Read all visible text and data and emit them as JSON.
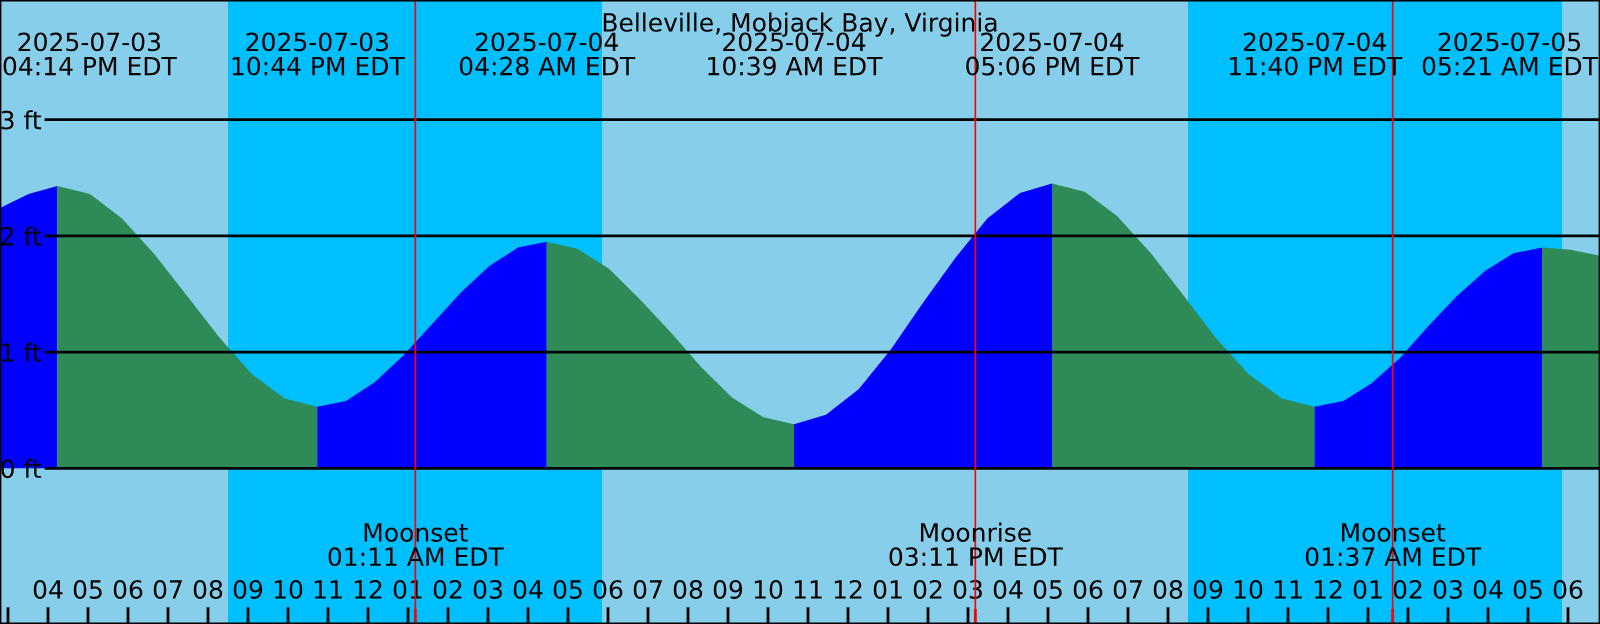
{
  "chart_data": {
    "type": "area",
    "title": "Belleville, Mobjack Bay, Virginia",
    "xlim": [
      "2025-07-03T14:48",
      "2025-07-05T06:48"
    ],
    "ylim": [
      -1.34,
      4.03
    ],
    "yticks": [
      {
        "value": 0,
        "label": "0 ft"
      },
      {
        "value": 1,
        "label": "1 ft"
      },
      {
        "value": 2,
        "label": "2 ft"
      },
      {
        "value": 3,
        "label": "3 ft"
      }
    ],
    "xticks": [
      {
        "value": "2025-07-03T15:00",
        "label": null
      },
      {
        "value": "2025-07-03T16:00",
        "label": "04"
      },
      {
        "value": "2025-07-03T17:00",
        "label": "05"
      },
      {
        "value": "2025-07-03T18:00",
        "label": "06"
      },
      {
        "value": "2025-07-03T19:00",
        "label": "07"
      },
      {
        "value": "2025-07-03T20:00",
        "label": "08"
      },
      {
        "value": "2025-07-03T21:00",
        "label": "09"
      },
      {
        "value": "2025-07-03T22:00",
        "label": "10"
      },
      {
        "value": "2025-07-03T23:00",
        "label": "11"
      },
      {
        "value": "2025-07-04T00:00",
        "label": "12"
      },
      {
        "value": "2025-07-04T01:00",
        "label": "01"
      },
      {
        "value": "2025-07-04T02:00",
        "label": "02"
      },
      {
        "value": "2025-07-04T03:00",
        "label": "03"
      },
      {
        "value": "2025-07-04T04:00",
        "label": "04"
      },
      {
        "value": "2025-07-04T05:00",
        "label": "05"
      },
      {
        "value": "2025-07-04T06:00",
        "label": "06"
      },
      {
        "value": "2025-07-04T07:00",
        "label": "07"
      },
      {
        "value": "2025-07-04T08:00",
        "label": "08"
      },
      {
        "value": "2025-07-04T09:00",
        "label": "09"
      },
      {
        "value": "2025-07-04T10:00",
        "label": "10"
      },
      {
        "value": "2025-07-04T11:00",
        "label": "11"
      },
      {
        "value": "2025-07-04T12:00",
        "label": "12"
      },
      {
        "value": "2025-07-04T13:00",
        "label": "01"
      },
      {
        "value": "2025-07-04T14:00",
        "label": "02"
      },
      {
        "value": "2025-07-04T15:00",
        "label": "03"
      },
      {
        "value": "2025-07-04T16:00",
        "label": "04"
      },
      {
        "value": "2025-07-04T17:00",
        "label": "05"
      },
      {
        "value": "2025-07-04T18:00",
        "label": "06"
      },
      {
        "value": "2025-07-04T19:00",
        "label": "07"
      },
      {
        "value": "2025-07-04T20:00",
        "label": "08"
      },
      {
        "value": "2025-07-04T21:00",
        "label": "09"
      },
      {
        "value": "2025-07-04T22:00",
        "label": "10"
      },
      {
        "value": "2025-07-04T23:00",
        "label": "11"
      },
      {
        "value": "2025-07-05T00:00",
        "label": "12"
      },
      {
        "value": "2025-07-05T01:00",
        "label": "01"
      },
      {
        "value": "2025-07-05T02:00",
        "label": "02"
      },
      {
        "value": "2025-07-05T03:00",
        "label": "03"
      },
      {
        "value": "2025-07-05T04:00",
        "label": "04"
      },
      {
        "value": "2025-07-05T05:00",
        "label": "05"
      },
      {
        "value": "2025-07-05T06:00",
        "label": "06"
      }
    ],
    "grid": "y",
    "series": [
      {
        "color": "#0000ff",
        "x": [
          "2025-07-03T14:48",
          "2025-07-03T15:31",
          "2025-07-03T16:14"
        ],
        "values": [
          2.24,
          2.36,
          2.43
        ]
      },
      {
        "color": "#2e8b57",
        "x": [
          "2025-07-03T16:14",
          "2025-07-03T17:03",
          "2025-07-03T17:51",
          "2025-07-03T18:40",
          "2025-07-03T19:29",
          "2025-07-03T20:18",
          "2025-07-03T21:06",
          "2025-07-03T21:55",
          "2025-07-03T22:44"
        ],
        "values": [
          2.43,
          2.36,
          2.15,
          1.84,
          1.48,
          1.12,
          0.81,
          0.6,
          0.53
        ]
      },
      {
        "color": "#0000ff",
        "x": [
          "2025-07-03T22:44",
          "2025-07-03T23:27",
          "2025-07-04T00:10",
          "2025-07-04T00:53",
          "2025-07-04T01:36",
          "2025-07-04T02:19",
          "2025-07-04T03:02",
          "2025-07-04T03:45",
          "2025-07-04T04:28"
        ],
        "values": [
          0.53,
          0.58,
          0.74,
          0.97,
          1.24,
          1.51,
          1.74,
          1.9,
          1.95
        ]
      },
      {
        "color": "#2e8b57",
        "x": [
          "2025-07-04T04:28",
          "2025-07-04T05:14",
          "2025-07-04T06:01",
          "2025-07-04T06:47",
          "2025-07-04T07:34",
          "2025-07-04T08:20",
          "2025-07-04T09:06",
          "2025-07-04T09:53",
          "2025-07-04T10:39"
        ],
        "values": [
          1.95,
          1.89,
          1.72,
          1.46,
          1.17,
          0.87,
          0.61,
          0.44,
          0.38
        ]
      },
      {
        "color": "#0000ff",
        "x": [
          "2025-07-04T10:39",
          "2025-07-04T11:27",
          "2025-07-04T12:16",
          "2025-07-04T13:04",
          "2025-07-04T13:52",
          "2025-07-04T14:41",
          "2025-07-04T15:29",
          "2025-07-04T16:18",
          "2025-07-04T17:06"
        ],
        "values": [
          0.38,
          0.46,
          0.68,
          1.02,
          1.42,
          1.81,
          2.15,
          2.37,
          2.45
        ]
      },
      {
        "color": "#2e8b57",
        "x": [
          "2025-07-04T17:06",
          "2025-07-04T17:55",
          "2025-07-04T18:44",
          "2025-07-04T19:33",
          "2025-07-04T20:23",
          "2025-07-04T21:12",
          "2025-07-04T22:01",
          "2025-07-04T22:51",
          "2025-07-04T23:40"
        ],
        "values": [
          2.45,
          2.38,
          2.17,
          1.86,
          1.49,
          1.12,
          0.81,
          0.6,
          0.53
        ]
      },
      {
        "color": "#0000ff",
        "x": [
          "2025-07-04T23:40",
          "2025-07-05T00:23",
          "2025-07-05T01:05",
          "2025-07-05T01:48",
          "2025-07-05T02:30",
          "2025-07-05T03:13",
          "2025-07-05T03:56",
          "2025-07-05T04:38",
          "2025-07-05T05:21"
        ],
        "values": [
          0.53,
          0.58,
          0.73,
          0.95,
          1.22,
          1.48,
          1.7,
          1.85,
          1.9
        ]
      },
      {
        "color": "#2e8b57",
        "x": [
          "2025-07-05T05:21",
          "2025-07-05T06:04",
          "2025-07-05T06:48"
        ],
        "values": [
          1.9,
          1.88,
          1.83
        ]
      }
    ],
    "bands": [
      {
        "axis": "x",
        "from": "2025-07-03T14:48",
        "to": "2025-07-03T20:30",
        "color": "#87ceeb"
      },
      {
        "axis": "x",
        "from": "2025-07-03T20:30",
        "to": "2025-07-04T05:51",
        "color": "#00bfff"
      },
      {
        "axis": "x",
        "from": "2025-07-04T05:51",
        "to": "2025-07-04T20:30",
        "color": "#87ceeb"
      },
      {
        "axis": "x",
        "from": "2025-07-04T20:30",
        "to": "2025-07-05T05:51",
        "color": "#00bfff"
      },
      {
        "axis": "x",
        "from": "2025-07-05T05:51",
        "to": "2025-07-05T06:48",
        "color": "#87ceeb"
      }
    ],
    "annotations": [
      "2025-07-03\n04:14 PM EDT",
      "2025-07-03\n10:44 PM EDT",
      "2025-07-04\n04:28 AM EDT",
      "2025-07-04\n10:39 AM EDT",
      "2025-07-04\n05:06 PM EDT",
      "2025-07-04\n11:40 PM EDT",
      "2025-07-05\n05:21 AM EDT"
    ],
    "ref_lines": [
      {
        "axis": "x",
        "value": "2025-07-04T01:11",
        "label": "Moonset\n01:11 AM EDT",
        "color": "#ff0000"
      },
      {
        "axis": "x",
        "value": "2025-07-04T15:11",
        "label": "Moonrise\n03:11 PM EDT",
        "color": "#ff0000"
      },
      {
        "axis": "x",
        "value": "2025-07-05T01:37",
        "label": "Moonset\n01:37 AM EDT",
        "color": "#ff0000"
      }
    ]
  }
}
